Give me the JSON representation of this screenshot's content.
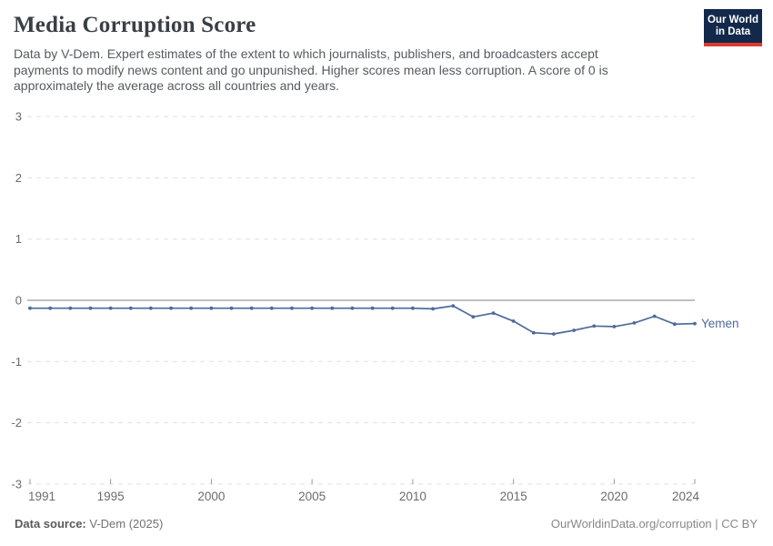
{
  "header": {
    "title": "Media Corruption Score",
    "subtitle": "Data by V-Dem. Expert estimates of the extent to which journalists, publishers, and broadcasters accept payments to modify news content and go unpunished. Higher scores mean less corruption. A score of 0 is approximately the average across all countries and years.",
    "logo": {
      "line1": "Our World",
      "line2": "in Data"
    }
  },
  "chart_data": {
    "type": "line",
    "title": "Media Corruption Score",
    "x": [
      1991,
      1992,
      1993,
      1994,
      1995,
      1996,
      1997,
      1998,
      1999,
      2000,
      2001,
      2002,
      2003,
      2004,
      2005,
      2006,
      2007,
      2008,
      2009,
      2010,
      2011,
      2012,
      2013,
      2014,
      2015,
      2016,
      2017,
      2018,
      2019,
      2020,
      2021,
      2022,
      2023,
      2024
    ],
    "series": [
      {
        "name": "Yemen",
        "color": "#4C6A9C",
        "values": [
          -0.13,
          -0.13,
          -0.13,
          -0.13,
          -0.13,
          -0.13,
          -0.13,
          -0.13,
          -0.13,
          -0.13,
          -0.13,
          -0.13,
          -0.13,
          -0.13,
          -0.13,
          -0.13,
          -0.13,
          -0.13,
          -0.13,
          -0.13,
          -0.14,
          -0.09,
          -0.27,
          -0.21,
          -0.34,
          -0.53,
          -0.55,
          -0.49,
          -0.42,
          -0.43,
          -0.37,
          -0.26,
          -0.39,
          -0.38
        ]
      }
    ],
    "x_ticks": [
      "1991",
      "1995",
      "2000",
      "2005",
      "2010",
      "2015",
      "2020",
      "2024"
    ],
    "y_ticks": [
      "3",
      "2",
      "1",
      "0",
      "-1",
      "-2",
      "-3"
    ],
    "xlim": [
      1991,
      2024
    ],
    "ylim": [
      -3,
      3
    ],
    "grid": "horizontal-dashed",
    "zero_line": true,
    "legend_position": "end-of-line"
  },
  "footer": {
    "source_label": "Data source:",
    "source_value": "V-Dem (2025)",
    "credit": "OurWorldinData.org/corruption | CC BY"
  },
  "colors": {
    "line": "#4C6A9C",
    "grid": "#e0e0e0",
    "zero_line": "#ababab",
    "axis_tick": "#999999",
    "tick_text": "#6b6b6b",
    "title_text": "#3a3f45",
    "logo_bg": "#12294b",
    "logo_stripe": "#dc3a31"
  }
}
